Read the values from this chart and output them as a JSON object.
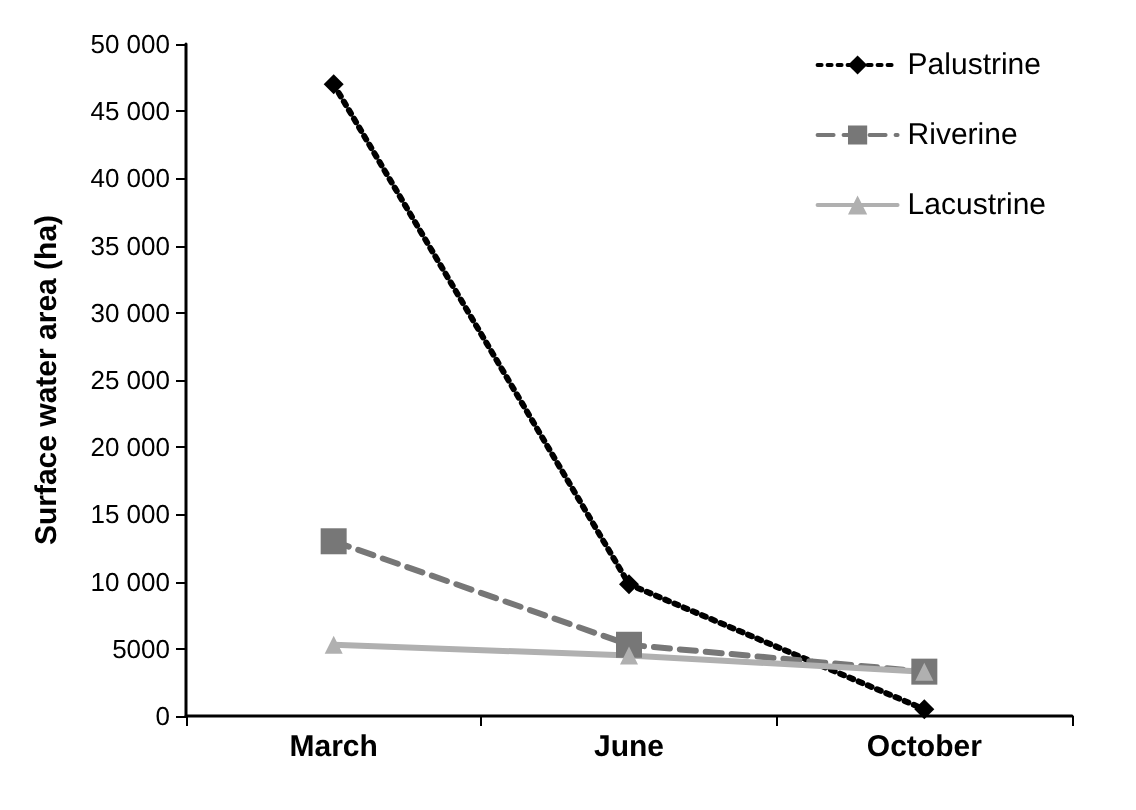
{
  "chart_data": {
    "type": "line",
    "ylabel": "Surface water area (ha)",
    "categories": [
      "March",
      "June",
      "October"
    ],
    "series": [
      {
        "name": "Palustrine",
        "color": "#000000",
        "marker": "diamond",
        "line_style": "dotted",
        "values": [
          47000,
          9800,
          500
        ]
      },
      {
        "name": "Riverine",
        "color": "#777777",
        "marker": "square",
        "line_style": "dashed",
        "values": [
          13000,
          5300,
          3300
        ]
      },
      {
        "name": "Lacustrine",
        "color": "#b0b0b0",
        "marker": "triangle",
        "line_style": "solid",
        "values": [
          5300,
          4500,
          3300
        ]
      }
    ],
    "ylim": [
      0,
      50000
    ],
    "yticks": [
      0,
      5000,
      {
        "value": 10000,
        "label": "10 000"
      },
      {
        "value": 15000,
        "label": "15 000"
      },
      {
        "value": 20000,
        "label": "20 000"
      },
      {
        "value": 25000,
        "label": "25 000"
      },
      {
        "value": 30000,
        "label": "30 000"
      },
      {
        "value": 35000,
        "label": "35 000"
      },
      {
        "value": 40000,
        "label": "40 000"
      },
      {
        "value": 45000,
        "label": "45 000"
      },
      {
        "value": 50000,
        "label": "50 000"
      }
    ],
    "grid": false,
    "legend": "top right"
  }
}
